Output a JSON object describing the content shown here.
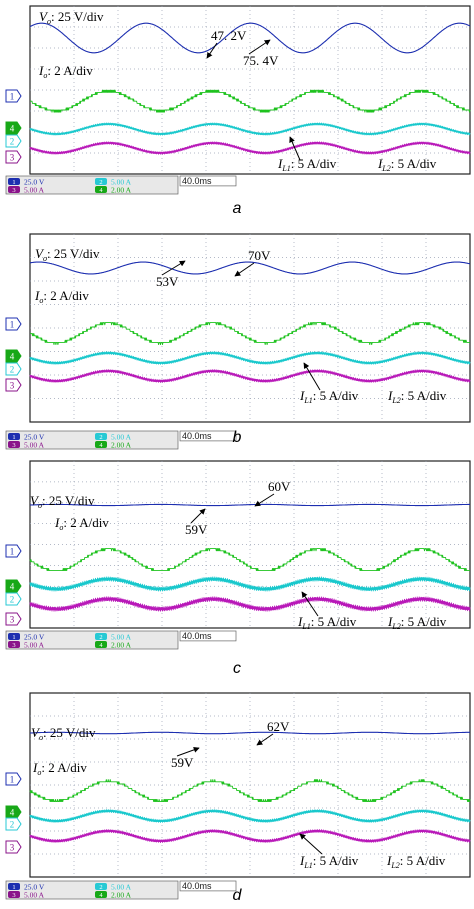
{
  "figure": {
    "grid": true,
    "background": "#ffffff",
    "colors": {
      "frame": "#222222",
      "grid": "#9aa3b5",
      "vo": "#1d2fb0",
      "ch2": "#18c8cc",
      "ch3": "#b818b8",
      "ch4": "#1ec21e",
      "status": "#e8e8e8",
      "ch1_badge": "#1d2fb0",
      "ch3_badge": "#8a138a",
      "ch2_badge": "#27c9d4",
      "ch4_badge": "#18a818"
    }
  },
  "panels": [
    {
      "caption": "a",
      "labels": {
        "vo": "V",
        "vo_sub": "o",
        "vo_scale": ": 25 V/div",
        "io": "I",
        "io_sub": "o",
        "io_scale": ": 2 A/div",
        "il1": "I",
        "il1_sub": "L1",
        "il1_scale": ": 5 A/div",
        "il2": "I",
        "il2_sub": "L2",
        "il2_scale": ": 5 A/div",
        "ann_min": "47. 2V",
        "ann_max": "75. 4V"
      },
      "markers": {
        "ch1": "1",
        "ch4": "4",
        "ch2": "2",
        "ch3": "3"
      },
      "status": {
        "ch1_num": "1",
        "ch1_scale": "25.0 V",
        "ch2_num": "2",
        "ch2_scale": "5.00 A",
        "ch3_num": "3",
        "ch3_scale": "5.00 A",
        "ch4_num": "4",
        "ch4_scale": "2.00 A",
        "timebase": "40.0ms"
      },
      "chart_data": {
        "type": "line",
        "x_unit": "ms",
        "time_per_div": 40,
        "x_range": [
          0,
          400
        ],
        "series": [
          {
            "name": "Vo",
            "unit": "V",
            "scale_per_div": 25,
            "min": 47.2,
            "max": 75.4,
            "period_ms": 95,
            "phase_deg": 50,
            "ripple": 0
          },
          {
            "name": "Io",
            "unit": "A",
            "scale_per_div": 2,
            "min": 1.0,
            "max": 3.2,
            "period_ms": 95,
            "phase_deg": 180,
            "ripple": 0.15
          },
          {
            "name": "IL1",
            "unit": "A",
            "scale_per_div": 5,
            "min": 1.4,
            "max": 5.8,
            "period_ms": 95,
            "phase_deg": 180,
            "ripple": 1.0
          },
          {
            "name": "IL2",
            "unit": "A",
            "scale_per_div": 5,
            "min": 1.0,
            "max": 5.0,
            "period_ms": 95,
            "phase_deg": 180,
            "ripple": 1.0
          }
        ]
      }
    },
    {
      "caption": "b",
      "labels": {
        "vo": "V",
        "vo_sub": "o",
        "vo_scale": ": 25 V/div",
        "io": "I",
        "io_sub": "o",
        "io_scale": ": 2 A/div",
        "il1": "I",
        "il1_sub": "L1",
        "il1_scale": ": 5 A/div",
        "il2": "I",
        "il2_sub": "L2",
        "il2_scale": ": 5 A/div",
        "ann_min": "53V",
        "ann_max": "70V"
      },
      "markers": {
        "ch1": "1",
        "ch4": "4",
        "ch2": "2",
        "ch3": "3"
      },
      "status": {
        "ch1_num": "1",
        "ch1_scale": "25.0 V",
        "ch2_num": "2",
        "ch2_scale": "5.00 A",
        "ch3_num": "3",
        "ch3_scale": "5.00 A",
        "ch4_num": "4",
        "ch4_scale": "2.00 A",
        "timebase": "40.0ms"
      },
      "chart_data": {
        "type": "line",
        "x_unit": "ms",
        "time_per_div": 40,
        "x_range": [
          0,
          400
        ],
        "series": [
          {
            "name": "Vo",
            "unit": "V",
            "scale_per_div": 25,
            "min": 53,
            "max": 70,
            "period_ms": 95,
            "phase_deg": 60,
            "ripple": 0
          },
          {
            "name": "Io",
            "unit": "A",
            "scale_per_div": 2,
            "min": 1.0,
            "max": 3.2,
            "period_ms": 95,
            "phase_deg": 180,
            "ripple": 0.15
          },
          {
            "name": "IL1",
            "unit": "A",
            "scale_per_div": 5,
            "min": 1.6,
            "max": 5.4,
            "period_ms": 95,
            "phase_deg": 180,
            "ripple": 1.0
          },
          {
            "name": "IL2",
            "unit": "A",
            "scale_per_div": 5,
            "min": 1.2,
            "max": 4.8,
            "period_ms": 95,
            "phase_deg": 180,
            "ripple": 1.0
          }
        ]
      }
    },
    {
      "caption": "c",
      "labels": {
        "vo": "V",
        "vo_sub": "o",
        "vo_scale": ": 25 V/div",
        "io": "I",
        "io_sub": "o",
        "io_scale": ": 2 A/div",
        "il1": "I",
        "il1_sub": "L1",
        "il1_scale": ": 5 A/div",
        "il2": "I",
        "il2_sub": "L2",
        "il2_scale": ": 5 A/div",
        "ann_min": "59V",
        "ann_max": "60V"
      },
      "markers": {
        "ch1": "1",
        "ch4": "4",
        "ch2": "2",
        "ch3": "3"
      },
      "status": {
        "ch1_num": "1",
        "ch1_scale": "25.0 V",
        "ch2_num": "2",
        "ch2_scale": "5.00 A",
        "ch3_num": "3",
        "ch3_scale": "5.00 A",
        "ch4_num": "4",
        "ch4_scale": "2.00 A",
        "timebase": "40.0ms"
      },
      "chart_data": {
        "type": "line",
        "x_unit": "ms",
        "time_per_div": 40,
        "x_range": [
          0,
          400
        ],
        "series": [
          {
            "name": "Vo",
            "unit": "V",
            "scale_per_div": 25,
            "min": 59,
            "max": 60,
            "period_ms": 95,
            "phase_deg": 0,
            "ripple": 0
          },
          {
            "name": "Io",
            "unit": "A",
            "scale_per_div": 2,
            "min": 0.9,
            "max": 3.3,
            "period_ms": 95,
            "phase_deg": 180,
            "ripple": 0.15
          },
          {
            "name": "IL1",
            "unit": "A",
            "scale_per_div": 5,
            "min": 1.6,
            "max": 5.4,
            "period_ms": 95,
            "phase_deg": 180,
            "ripple": 1.6
          },
          {
            "name": "IL2",
            "unit": "A",
            "scale_per_div": 5,
            "min": 1.2,
            "max": 4.8,
            "period_ms": 95,
            "phase_deg": 180,
            "ripple": 1.6
          }
        ]
      }
    },
    {
      "caption": "d",
      "labels": {
        "vo": "V",
        "vo_sub": "o",
        "vo_scale": ": 25 V/div",
        "io": "I",
        "io_sub": "o",
        "io_scale": ": 2 A/div",
        "il1": "I",
        "il1_sub": "L1",
        "il1_scale": ": 5 A/div",
        "il2": "I",
        "il2_sub": "L2",
        "il2_scale": ": 5 A/div",
        "ann_min": "59V",
        "ann_max": "62V"
      },
      "markers": {
        "ch1": "1",
        "ch4": "4",
        "ch2": "2",
        "ch3": "3"
      },
      "status": {
        "ch1_num": "1",
        "ch1_scale": "25.0 V",
        "ch2_num": "2",
        "ch2_scale": "5.00 A",
        "ch3_num": "3",
        "ch3_scale": "5.00 A",
        "ch4_num": "4",
        "ch4_scale": "2.00 A",
        "timebase": "40.0ms"
      },
      "chart_data": {
        "type": "line",
        "x_unit": "ms",
        "time_per_div": 40,
        "x_range": [
          0,
          400
        ],
        "series": [
          {
            "name": "Vo",
            "unit": "V",
            "scale_per_div": 25,
            "min": 59,
            "max": 62,
            "period_ms": 95,
            "phase_deg": 0,
            "ripple": 0
          },
          {
            "name": "Io",
            "unit": "A",
            "scale_per_div": 2,
            "min": 1.1,
            "max": 3.1,
            "period_ms": 95,
            "phase_deg": 180,
            "ripple": 0.12
          },
          {
            "name": "IL1",
            "unit": "A",
            "scale_per_div": 5,
            "min": 1.8,
            "max": 5.0,
            "period_ms": 95,
            "phase_deg": 180,
            "ripple": 0.9
          },
          {
            "name": "IL2",
            "unit": "A",
            "scale_per_div": 5,
            "min": 1.5,
            "max": 4.6,
            "period_ms": 95,
            "phase_deg": 180,
            "ripple": 0.9
          }
        ]
      }
    }
  ]
}
